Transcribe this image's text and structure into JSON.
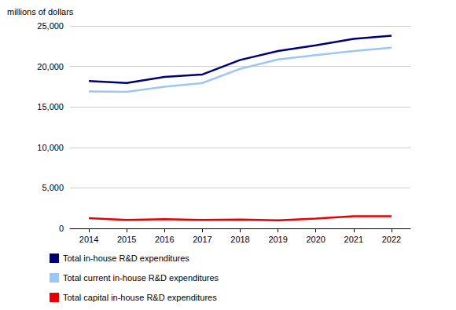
{
  "chart_data": {
    "type": "line",
    "y_label": "millions of dollars",
    "categories": [
      "2014",
      "2015",
      "2016",
      "2017",
      "2018",
      "2019",
      "2020",
      "2021",
      "2022"
    ],
    "series": [
      {
        "name": "Total in-house R&D expenditures",
        "color": "#000075",
        "values": [
          18200,
          17950,
          18700,
          19000,
          20800,
          21900,
          22600,
          23400,
          23800
        ]
      },
      {
        "name": "Total current in-house R&D expenditures",
        "color": "#9cc6f4",
        "values": [
          16900,
          16850,
          17500,
          17950,
          19700,
          20850,
          21400,
          21900,
          22300
        ]
      },
      {
        "name": "Total capital in-house R&D expenditures",
        "color": "#e60000",
        "values": [
          1250,
          1050,
          1150,
          1050,
          1100,
          1000,
          1200,
          1500,
          1500
        ]
      }
    ],
    "ylim": [
      0,
      25000
    ],
    "yticks": [
      0,
      {
        "value": 5000,
        "label": "5,000"
      },
      {
        "value": 10000,
        "label": "10,000"
      },
      {
        "value": 15000,
        "label": "15,000"
      },
      {
        "value": 20000,
        "label": "20,000"
      },
      {
        "value": 25000,
        "label": "25,000"
      }
    ],
    "grid": true,
    "legend": "bottom",
    "marker": "none"
  }
}
